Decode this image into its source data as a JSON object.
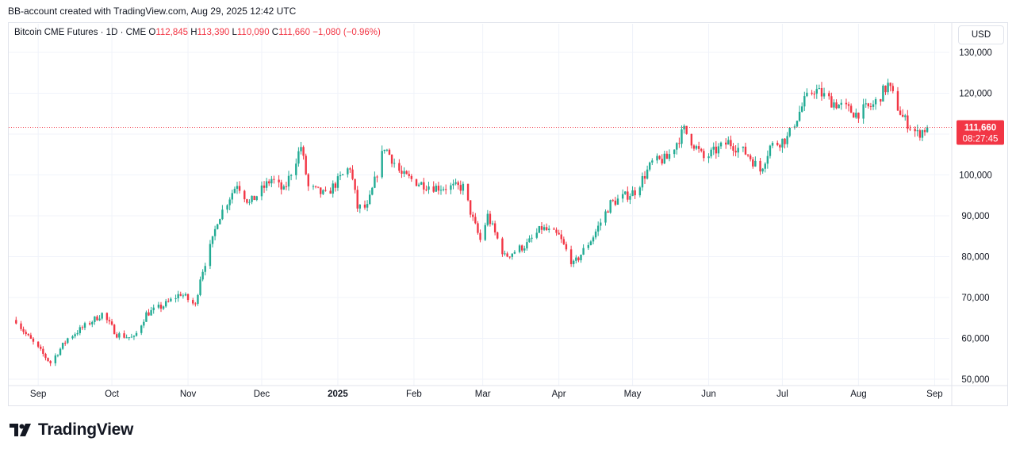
{
  "caption": "BB-account created with TradingView.com, Aug 29, 2025 12:42 UTC",
  "legend": {
    "symbol": "Bitcoin CME Futures · 1D · CME",
    "open_label": "O",
    "open": "112,845",
    "high_label": "H",
    "high": "113,390",
    "low_label": "L",
    "low": "110,090",
    "close_label": "C",
    "close": "111,660",
    "change": "−1,080 (−0.96%)"
  },
  "currency": "USD",
  "last_price_label": {
    "price": "111,660",
    "countdown": "08:27:45"
  },
  "brand": "TradingView",
  "colors": {
    "up": "#22ab94",
    "down": "#f23645",
    "grid": "#f0f3fa",
    "text": "#131722"
  },
  "chart_data": {
    "type": "candlestick",
    "y_axis": {
      "min": 48000,
      "max": 134000,
      "ticks": [
        50000,
        60000,
        70000,
        80000,
        90000,
        100000,
        110000,
        120000,
        130000
      ],
      "tick_labels": [
        "50,000",
        "60,000",
        "70,000",
        "80,000",
        "90,000",
        "100,000",
        "110,000",
        "120,000",
        "130,000"
      ]
    },
    "x_axis": {
      "start": "2024-08-20",
      "end": "2025-09-07",
      "ticks": [
        {
          "date": "2024-09-01",
          "label": "Sep",
          "bold": false
        },
        {
          "date": "2024-10-01",
          "label": "Oct",
          "bold": false
        },
        {
          "date": "2024-11-01",
          "label": "Nov",
          "bold": false
        },
        {
          "date": "2024-12-01",
          "label": "Dec",
          "bold": false
        },
        {
          "date": "2025-01-01",
          "label": "2025",
          "bold": true
        },
        {
          "date": "2025-02-01",
          "label": "Feb",
          "bold": false
        },
        {
          "date": "2025-03-01",
          "label": "Mar",
          "bold": false
        },
        {
          "date": "2025-04-01",
          "label": "Apr",
          "bold": false
        },
        {
          "date": "2025-05-01",
          "label": "May",
          "bold": false
        },
        {
          "date": "2025-06-01",
          "label": "Jun",
          "bold": false
        },
        {
          "date": "2025-07-01",
          "label": "Jul",
          "bold": false
        },
        {
          "date": "2025-08-01",
          "label": "Aug",
          "bold": false
        },
        {
          "date": "2025-09-01",
          "label": "Sep",
          "bold": false
        }
      ]
    },
    "last_price": 111660,
    "trend_points": [
      [
        "2024-08-23",
        64500
      ],
      [
        "2024-08-27",
        61000
      ],
      [
        "2024-09-06",
        54000
      ],
      [
        "2024-09-13",
        60000
      ],
      [
        "2024-09-20",
        63000
      ],
      [
        "2024-09-27",
        66000
      ],
      [
        "2024-10-03",
        61000
      ],
      [
        "2024-10-10",
        60000
      ],
      [
        "2024-10-15",
        66000
      ],
      [
        "2024-10-22",
        68000
      ],
      [
        "2024-10-29",
        71000
      ],
      [
        "2024-11-04",
        68000
      ],
      [
        "2024-11-06",
        75000
      ],
      [
        "2024-11-11",
        84000
      ],
      [
        "2024-11-13",
        89000
      ],
      [
        "2024-11-21",
        98000
      ],
      [
        "2024-11-26",
        93000
      ],
      [
        "2024-12-05",
        99000
      ],
      [
        "2024-12-10",
        96000
      ],
      [
        "2024-12-17",
        107000
      ],
      [
        "2024-12-20",
        97000
      ],
      [
        "2024-12-27",
        95000
      ],
      [
        "2025-01-06",
        102000
      ],
      [
        "2025-01-09",
        92000
      ],
      [
        "2025-01-13",
        92000
      ],
      [
        "2025-01-20",
        107000
      ],
      [
        "2025-01-27",
        100000
      ],
      [
        "2025-02-03",
        98000
      ],
      [
        "2025-02-10",
        97000
      ],
      [
        "2025-02-21",
        97000
      ],
      [
        "2025-02-25",
        89000
      ],
      [
        "2025-02-28",
        84000
      ],
      [
        "2025-03-03",
        90000
      ],
      [
        "2025-03-10",
        80000
      ],
      [
        "2025-03-19",
        83000
      ],
      [
        "2025-03-25",
        87000
      ],
      [
        "2025-04-01",
        85000
      ],
      [
        "2025-04-07",
        78000
      ],
      [
        "2025-04-15",
        85000
      ],
      [
        "2025-04-22",
        93000
      ],
      [
        "2025-05-02",
        96000
      ],
      [
        "2025-05-09",
        103000
      ],
      [
        "2025-05-15",
        104000
      ],
      [
        "2025-05-22",
        111000
      ],
      [
        "2025-05-30",
        104000
      ],
      [
        "2025-06-09",
        108000
      ],
      [
        "2025-06-17",
        105000
      ],
      [
        "2025-06-22",
        101000
      ],
      [
        "2025-06-26",
        107000
      ],
      [
        "2025-07-03",
        109000
      ],
      [
        "2025-07-10",
        118000
      ],
      [
        "2025-07-14",
        121000
      ],
      [
        "2025-07-21",
        118000
      ],
      [
        "2025-07-31",
        115000
      ],
      [
        "2025-08-07",
        117000
      ],
      [
        "2025-08-13",
        122000
      ],
      [
        "2025-08-19",
        114000
      ],
      [
        "2025-08-25",
        110000
      ],
      [
        "2025-08-29",
        111660
      ]
    ]
  }
}
